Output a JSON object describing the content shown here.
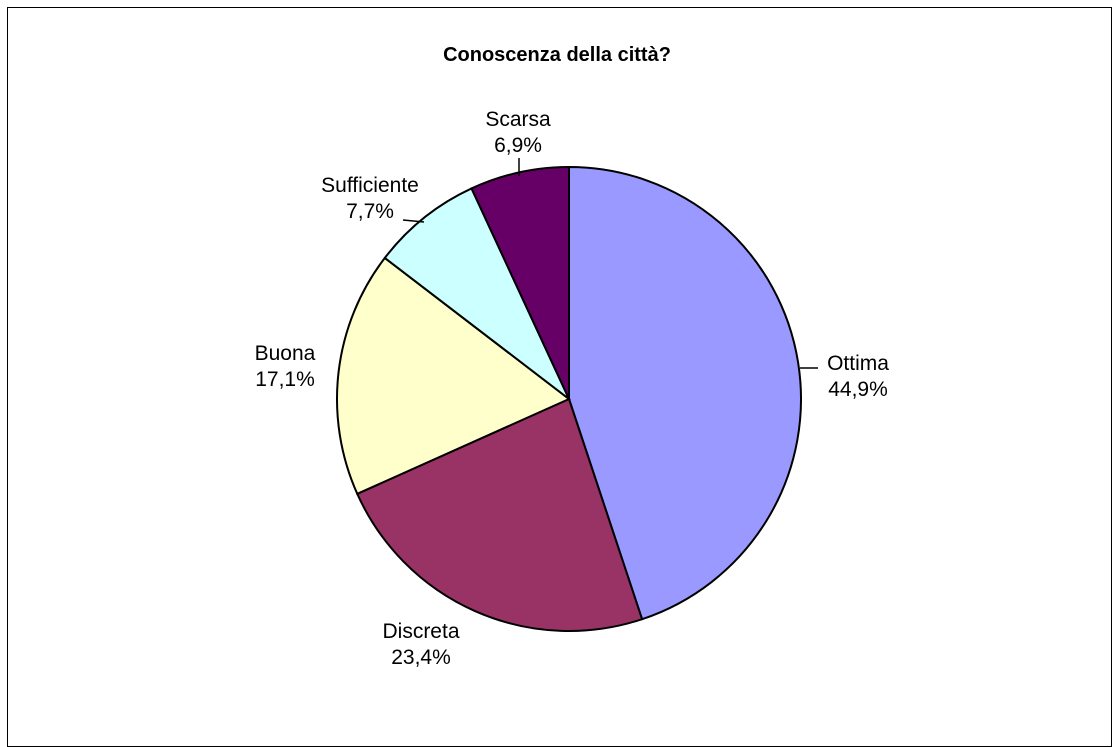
{
  "chart_data": {
    "type": "pie",
    "title": "Conoscenza della città?",
    "slices": [
      {
        "category": "Ottima",
        "value": 44.9,
        "label": "44,9%",
        "color": "#9999FF"
      },
      {
        "category": "Discreta",
        "value": 23.4,
        "label": "23,4%",
        "color": "#993366"
      },
      {
        "category": "Buona",
        "value": 17.1,
        "label": "17,1%",
        "color": "#FFFFCC"
      },
      {
        "category": "Sufficiente",
        "value": 7.7,
        "label": "7,7%",
        "color": "#CCFFFF"
      },
      {
        "category": "Scarsa",
        "value": 6.9,
        "label": "6,9%",
        "color": "#660066"
      }
    ],
    "start": "top",
    "direction": "clockwise",
    "legend": "none"
  }
}
